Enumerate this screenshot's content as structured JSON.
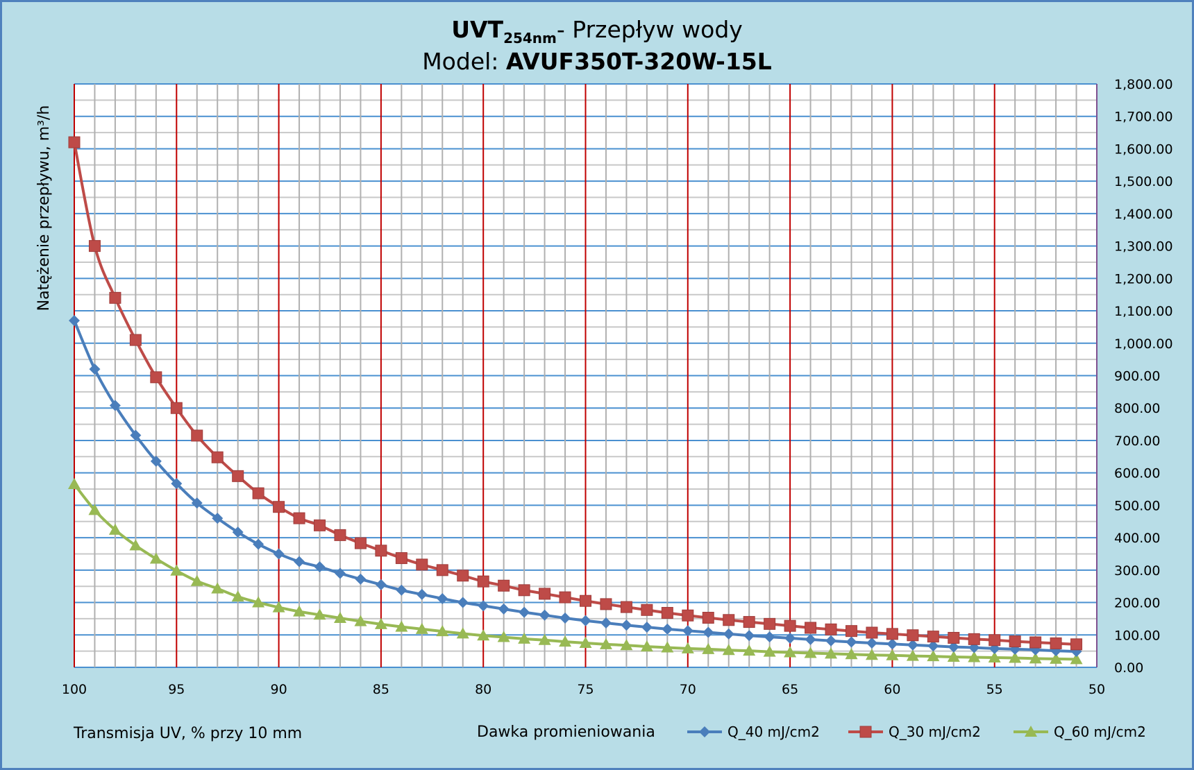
{
  "chart_data": {
    "type": "line",
    "title_main": "UVT",
    "title_sub": "254nm",
    "title_rest": "- Przepływ wody",
    "title_model_label": "Model: ",
    "title_model": "AVUF350T-320W-15L",
    "xlabel": "Transmisja UV, % przy 10 mm",
    "ylabel": "Natężenie przepływu, m³/h",
    "legend_title": "Dawka promieniowania",
    "legend_placement": "bottom-right",
    "xlim": [
      100,
      50
    ],
    "ylim": [
      0,
      1800
    ],
    "x_ticks": [
      "100",
      "95",
      "90",
      "85",
      "80",
      "75",
      "70",
      "65",
      "60",
      "55",
      "50"
    ],
    "y_ticks": [
      "0.00",
      "100.00",
      "200.00",
      "300.00",
      "400.00",
      "500.00",
      "600.00",
      "700.00",
      "800.00",
      "900.00",
      "1,000.00",
      "1,100.00",
      "1,200.00",
      "1,300.00",
      "1,400.00",
      "1,500.00",
      "1,600.00",
      "1,700.00",
      "1,800.00"
    ],
    "y_axis_side": "right",
    "grid": true,
    "x": [
      100,
      99,
      98,
      97,
      96,
      95,
      94,
      93,
      92,
      91,
      90,
      89,
      88,
      87,
      86,
      85,
      84,
      83,
      82,
      81,
      80,
      79,
      78,
      77,
      76,
      75,
      74,
      73,
      72,
      71,
      70,
      69,
      68,
      67,
      66,
      65,
      64,
      63,
      62,
      61,
      60,
      59,
      58,
      57,
      56,
      55,
      54,
      53,
      52,
      51
    ],
    "series": [
      {
        "name": "Q_40 mJ/cm2",
        "color": "#4a7ebb",
        "marker": "diamond",
        "values": [
          1070,
          920,
          808,
          716,
          636,
          567,
          507,
          460,
          417,
          380,
          350,
          326,
          310,
          290,
          272,
          255,
          238,
          225,
          212,
          200,
          190,
          180,
          170,
          161,
          152,
          144,
          137,
          130,
          124,
          118,
          113,
          108,
          103,
          98,
          94,
          90,
          86,
          82,
          78,
          75,
          72,
          69,
          66,
          63,
          61,
          58,
          56,
          54,
          51,
          49
        ]
      },
      {
        "name": "Q_30 mJ/cm2",
        "color": "#be4b48",
        "marker": "square",
        "values": [
          1620,
          1300,
          1140,
          1010,
          895,
          800,
          715,
          648,
          590,
          537,
          495,
          460,
          438,
          408,
          383,
          360,
          337,
          317,
          300,
          283,
          265,
          252,
          238,
          227,
          216,
          205,
          195,
          186,
          177,
          168,
          160,
          153,
          146,
          140,
          134,
          128,
          122,
          117,
          112,
          107,
          103,
          99,
          95,
          91,
          87,
          84,
          80,
          77,
          74,
          71
        ]
      },
      {
        "name": "Q_60 mJ/cm2",
        "color": "#98b954",
        "marker": "triangle",
        "values": [
          565,
          485,
          424,
          376,
          335,
          298,
          266,
          243,
          218,
          200,
          185,
          172,
          162,
          152,
          142,
          133,
          125,
          118,
          111,
          104,
          98,
          93,
          88,
          84,
          79,
          75,
          71,
          68,
          64,
          61,
          58,
          56,
          53,
          51,
          48,
          46,
          44,
          42,
          40,
          38,
          37,
          35,
          34,
          32,
          31,
          30,
          29,
          27,
          26,
          25
        ]
      }
    ]
  }
}
